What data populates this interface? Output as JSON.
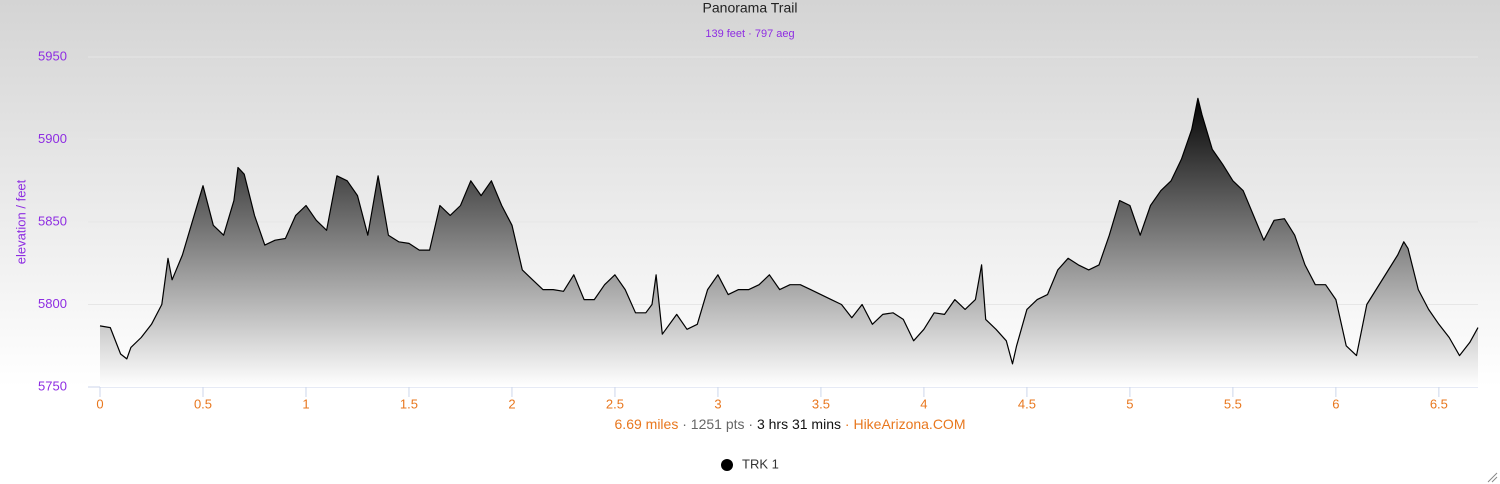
{
  "chart_data": {
    "type": "area",
    "title": "Panorama Trail",
    "subtitle": "139 feet · 797 aeg",
    "y_label": "elevation / feet",
    "footer": {
      "parts": [
        "6.69 miles",
        "1251 pts",
        "3 hrs 31 mins",
        "HikeArizona.COM"
      ],
      "separator": "·"
    },
    "x": [
      0,
      0.05,
      0.1,
      0.13,
      0.15,
      0.2,
      0.25,
      0.3,
      0.33,
      0.35,
      0.4,
      0.45,
      0.5,
      0.55,
      0.6,
      0.65,
      0.67,
      0.7,
      0.75,
      0.8,
      0.85,
      0.9,
      0.95,
      1.0,
      1.05,
      1.1,
      1.15,
      1.2,
      1.25,
      1.3,
      1.35,
      1.4,
      1.45,
      1.5,
      1.55,
      1.6,
      1.65,
      1.7,
      1.75,
      1.8,
      1.85,
      1.9,
      1.95,
      2.0,
      2.05,
      2.1,
      2.15,
      2.2,
      2.25,
      2.3,
      2.35,
      2.4,
      2.45,
      2.5,
      2.55,
      2.6,
      2.65,
      2.68,
      2.7,
      2.73,
      2.8,
      2.85,
      2.9,
      2.95,
      3.0,
      3.05,
      3.1,
      3.15,
      3.2,
      3.25,
      3.3,
      3.35,
      3.4,
      3.45,
      3.5,
      3.55,
      3.6,
      3.65,
      3.7,
      3.75,
      3.8,
      3.85,
      3.9,
      3.95,
      4.0,
      4.05,
      4.1,
      4.15,
      4.2,
      4.25,
      4.28,
      4.3,
      4.35,
      4.4,
      4.43,
      4.45,
      4.5,
      4.55,
      4.6,
      4.65,
      4.7,
      4.75,
      4.8,
      4.85,
      4.9,
      4.95,
      5.0,
      5.05,
      5.1,
      5.15,
      5.2,
      5.25,
      5.3,
      5.33,
      5.35,
      5.4,
      5.45,
      5.5,
      5.55,
      5.6,
      5.65,
      5.7,
      5.75,
      5.8,
      5.85,
      5.9,
      5.95,
      6.0,
      6.05,
      6.1,
      6.15,
      6.2,
      6.25,
      6.3,
      6.33,
      6.35,
      6.4,
      6.45,
      6.5,
      6.55,
      6.6,
      6.65,
      6.69
    ],
    "series": [
      {
        "name": "TRK 1",
        "color": "#000000",
        "values": [
          5787,
          5786,
          5770,
          5767,
          5774,
          5780,
          5788,
          5800,
          5828,
          5815,
          5830,
          5851,
          5872,
          5848,
          5842,
          5863,
          5883,
          5879,
          5854,
          5836,
          5839,
          5840,
          5854,
          5860,
          5851,
          5845,
          5878,
          5875,
          5866,
          5842,
          5878,
          5842,
          5838,
          5837,
          5833,
          5833,
          5860,
          5854,
          5860,
          5875,
          5866,
          5875,
          5860,
          5848,
          5821,
          5815,
          5809,
          5809,
          5808,
          5818,
          5803,
          5803,
          5812,
          5818,
          5809,
          5795,
          5795,
          5800,
          5818,
          5782,
          5794,
          5785,
          5788,
          5809,
          5818,
          5806,
          5809,
          5809,
          5812,
          5818,
          5809,
          5812,
          5812,
          5809,
          5806,
          5803,
          5800,
          5792,
          5800,
          5788,
          5794,
          5795,
          5791,
          5778,
          5785,
          5795,
          5794,
          5803,
          5797,
          5803,
          5824,
          5791,
          5785,
          5778,
          5764,
          5775,
          5797,
          5803,
          5806,
          5821,
          5828,
          5824,
          5821,
          5824,
          5842,
          5863,
          5860,
          5842,
          5860,
          5869,
          5875,
          5888,
          5906,
          5925,
          5915,
          5894,
          5885,
          5875,
          5869,
          5854,
          5839,
          5851,
          5852,
          5842,
          5824,
          5812,
          5812,
          5803,
          5775,
          5769,
          5800,
          5810,
          5820,
          5830,
          5838,
          5834,
          5809,
          5797,
          5788,
          5780,
          5769,
          5777,
          5786
        ]
      }
    ],
    "xlim": [
      0,
      6.69
    ],
    "ylim": [
      5750,
      5950
    ],
    "xticks": [
      0,
      0.5,
      1,
      1.5,
      2,
      2.5,
      3,
      3.5,
      4,
      4.5,
      5,
      5.5,
      6,
      6.5
    ],
    "yticks": [
      5750,
      5800,
      5850,
      5900,
      5950
    ],
    "grid": true
  }
}
